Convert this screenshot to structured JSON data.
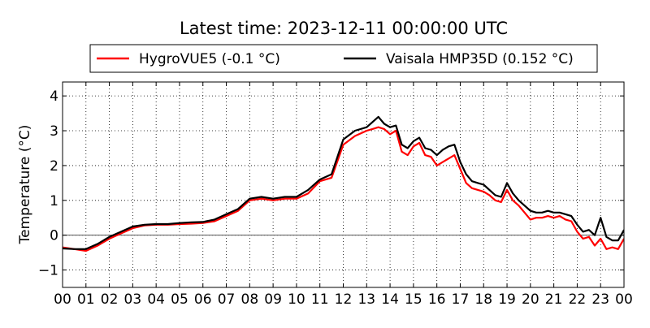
{
  "chart_data": {
    "type": "line",
    "title": "Latest time: 2023-12-11 00:00:00 UTC",
    "xlabel": "",
    "ylabel": "Temperature (°C)",
    "xlim": [
      0,
      24
    ],
    "ylim": [
      -1.5,
      4.4
    ],
    "x_ticks": [
      0,
      1,
      2,
      3,
      4,
      5,
      6,
      7,
      8,
      9,
      10,
      11,
      12,
      13,
      14,
      15,
      16,
      17,
      18,
      19,
      20,
      21,
      22,
      23,
      24
    ],
    "x_tick_labels": [
      "00",
      "01",
      "02",
      "03",
      "04",
      "05",
      "06",
      "07",
      "08",
      "09",
      "10",
      "11",
      "12",
      "13",
      "14",
      "15",
      "16",
      "17",
      "18",
      "19",
      "20",
      "21",
      "22",
      "23",
      "00"
    ],
    "y_ticks": [
      -1,
      0,
      1,
      2,
      3,
      4
    ],
    "y_tick_labels": [
      "−1",
      "0",
      "1",
      "2",
      "3",
      "4"
    ],
    "grid": true,
    "zero_line": true,
    "legend_position": "top-center",
    "series": [
      {
        "name": "HygroVUE5 (-0.1 °C)",
        "color": "#ff0000",
        "x": [
          0,
          0.5,
          1,
          1.5,
          2,
          2.5,
          3,
          3.5,
          4,
          4.5,
          5,
          5.5,
          6,
          6.5,
          7,
          7.5,
          8,
          8.5,
          9,
          9.5,
          10,
          10.5,
          11,
          11.5,
          12,
          12.5,
          13,
          13.25,
          13.5,
          13.75,
          14,
          14.25,
          14.5,
          14.75,
          15,
          15.25,
          15.5,
          15.75,
          16,
          16.25,
          16.5,
          16.75,
          17,
          17.25,
          17.5,
          17.75,
          18,
          18.25,
          18.5,
          18.75,
          19,
          19.25,
          19.5,
          19.75,
          20,
          20.25,
          20.5,
          20.75,
          21,
          21.25,
          21.5,
          21.75,
          22,
          22.25,
          22.5,
          22.75,
          23,
          23.25,
          23.5,
          23.75,
          24
        ],
        "values": [
          -0.35,
          -0.4,
          -0.45,
          -0.3,
          -0.1,
          0.05,
          0.2,
          0.28,
          0.3,
          0.3,
          0.32,
          0.33,
          0.35,
          0.4,
          0.55,
          0.7,
          1.0,
          1.05,
          1.0,
          1.05,
          1.05,
          1.2,
          1.55,
          1.65,
          2.6,
          2.85,
          3.0,
          3.05,
          3.1,
          3.05,
          2.9,
          3.0,
          2.4,
          2.3,
          2.55,
          2.65,
          2.3,
          2.25,
          2.0,
          2.1,
          2.2,
          2.3,
          1.9,
          1.5,
          1.35,
          1.3,
          1.25,
          1.15,
          1.0,
          0.95,
          1.3,
          1.0,
          0.85,
          0.65,
          0.45,
          0.5,
          0.5,
          0.55,
          0.5,
          0.55,
          0.45,
          0.4,
          0.1,
          -0.1,
          -0.05,
          -0.3,
          -0.1,
          -0.4,
          -0.35,
          -0.4,
          -0.1
        ]
      },
      {
        "name": "Vaisala HMP35D (0.152 °C)",
        "color": "#000000",
        "x": [
          0,
          0.5,
          1,
          1.5,
          2,
          2.5,
          3,
          3.5,
          4,
          4.5,
          5,
          5.5,
          6,
          6.5,
          7,
          7.5,
          8,
          8.5,
          9,
          9.5,
          10,
          10.5,
          11,
          11.5,
          12,
          12.5,
          13,
          13.25,
          13.5,
          13.75,
          14,
          14.25,
          14.5,
          14.75,
          15,
          15.25,
          15.5,
          15.75,
          16,
          16.25,
          16.5,
          16.75,
          17,
          17.25,
          17.5,
          17.75,
          18,
          18.25,
          18.5,
          18.75,
          19,
          19.25,
          19.5,
          19.75,
          20,
          20.25,
          20.5,
          20.75,
          21,
          21.25,
          21.5,
          21.75,
          22,
          22.25,
          22.5,
          22.75,
          23,
          23.25,
          23.5,
          23.75,
          24
        ],
        "values": [
          -0.38,
          -0.4,
          -0.4,
          -0.25,
          -0.05,
          0.1,
          0.25,
          0.3,
          0.32,
          0.32,
          0.35,
          0.37,
          0.38,
          0.45,
          0.6,
          0.75,
          1.05,
          1.1,
          1.05,
          1.1,
          1.1,
          1.3,
          1.6,
          1.75,
          2.75,
          3.0,
          3.1,
          3.25,
          3.4,
          3.2,
          3.1,
          3.15,
          2.6,
          2.5,
          2.7,
          2.8,
          2.5,
          2.45,
          2.3,
          2.45,
          2.55,
          2.6,
          2.1,
          1.75,
          1.55,
          1.5,
          1.45,
          1.3,
          1.15,
          1.1,
          1.5,
          1.2,
          1.0,
          0.85,
          0.7,
          0.65,
          0.65,
          0.7,
          0.65,
          0.65,
          0.6,
          0.55,
          0.3,
          0.1,
          0.15,
          0.0,
          0.5,
          -0.05,
          -0.15,
          -0.15,
          0.15
        ]
      }
    ]
  }
}
